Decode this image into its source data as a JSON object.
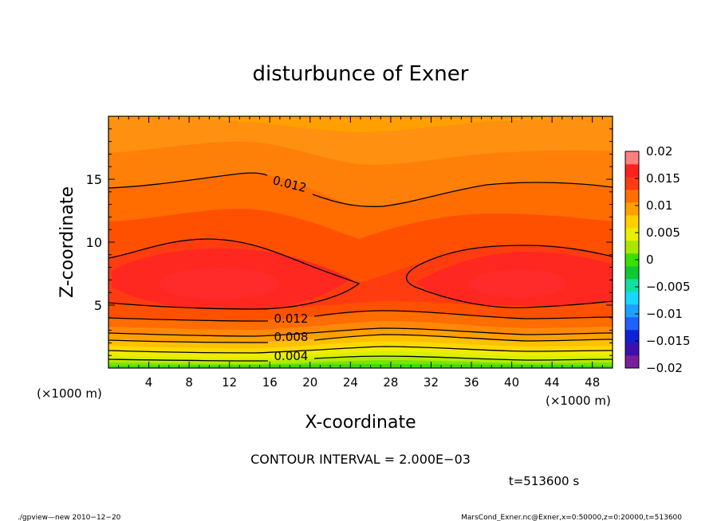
{
  "chart_data": {
    "type": "heatmap",
    "title": "disturbunce of Exner",
    "xlabel": "X-coordinate",
    "ylabel": "Z-coordinate",
    "x_unit_left": "(×1000 m)",
    "x_unit_right": "(×1000 m)",
    "xlim": [
      0,
      50
    ],
    "ylim": [
      0,
      20
    ],
    "x_ticks": [
      4,
      8,
      12,
      16,
      20,
      24,
      28,
      32,
      36,
      40,
      44,
      48
    ],
    "y_ticks": [
      5,
      10,
      15
    ],
    "colorbar": {
      "levels": [
        -0.02,
        -0.0175,
        -0.015,
        -0.0125,
        -0.01,
        -0.0075,
        -0.005,
        -0.0025,
        0,
        0.0025,
        0.005,
        0.0075,
        0.01,
        0.0125,
        0.015,
        0.0175,
        0.02
      ],
      "colors": [
        "#7a1f9c",
        "#3c0fb0",
        "#1020d8",
        "#2060ff",
        "#1ea0ff",
        "#18d8ff",
        "#10e0a0",
        "#10c830",
        "#38e000",
        "#a8e800",
        "#e8f000",
        "#ffd000",
        "#ffa000",
        "#ff7000",
        "#ff3c10",
        "#ff2020",
        "#ff8080"
      ],
      "labels": [
        "0.02",
        "0.015",
        "0.01",
        "0.005",
        "0",
        "−0.005",
        "−0.01",
        "−0.015",
        "−0.02"
      ]
    },
    "contour_labels": [
      "0.012",
      "0.012",
      "0.008",
      "0.004"
    ],
    "contour_interval_text": "CONTOUR INTERVAL = 2.000E−03",
    "time_text": "t=513600 s"
  },
  "footer": {
    "left": "./gpview—new   2010−12−20",
    "right": "MarsCond_Exner.nc@Exner,x=0:50000,z=0:20000,t=513600"
  }
}
